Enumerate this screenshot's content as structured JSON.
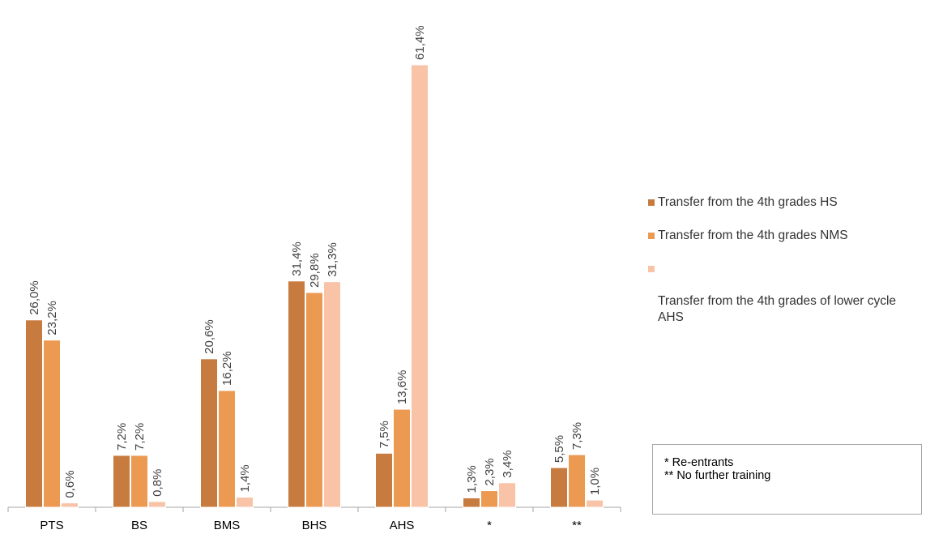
{
  "chart_data": {
    "type": "bar",
    "categories": [
      "PTS",
      "BS",
      "BMS",
      "BHS",
      "AHS",
      "*",
      "**"
    ],
    "series": [
      {
        "name": "Transfer from the 4th grades HS",
        "color": "#c77b3f",
        "values": [
          26.0,
          7.2,
          20.6,
          31.4,
          7.5,
          1.3,
          5.5
        ],
        "labels": [
          "26,0%",
          "7,2%",
          "20,6%",
          "31,4%",
          "7,5%",
          "1,3%",
          "5,5%"
        ]
      },
      {
        "name": "Transfer from the 4th grades NMS",
        "color": "#ec9a52",
        "values": [
          23.2,
          7.2,
          16.2,
          29.8,
          13.6,
          2.3,
          7.3
        ],
        "labels": [
          "23,2%",
          "7,2%",
          "16,2%",
          "29,8%",
          "13,6%",
          "2,3%",
          "7,3%"
        ]
      },
      {
        "name": "Transfer from the 4th grades of lower cycle AHS",
        "color": "#f8c3a7",
        "values": [
          0.6,
          0.8,
          1.4,
          31.3,
          61.4,
          3.4,
          1.0
        ],
        "labels": [
          "0,6%",
          "0,8%",
          "1,4%",
          "31,3%",
          "61,4%",
          "3,4%",
          "1,0%"
        ]
      }
    ],
    "ylim": [
      0,
      61.4
    ],
    "grid": false,
    "legend_position": "right",
    "data_labels": "rotated above bars"
  },
  "legend": {
    "items": [
      {
        "label": "Transfer from the 4th grades HS",
        "color": "#c77b3f"
      },
      {
        "label": "Transfer from the 4th grades NMS",
        "color": "#ec9a52"
      },
      {
        "label": "Transfer from the 4th grades of lower cycle\nAHS",
        "color": "#f8c3a7"
      }
    ]
  },
  "notes": {
    "line1": "* Re-entrants",
    "line2": "** No further training"
  }
}
